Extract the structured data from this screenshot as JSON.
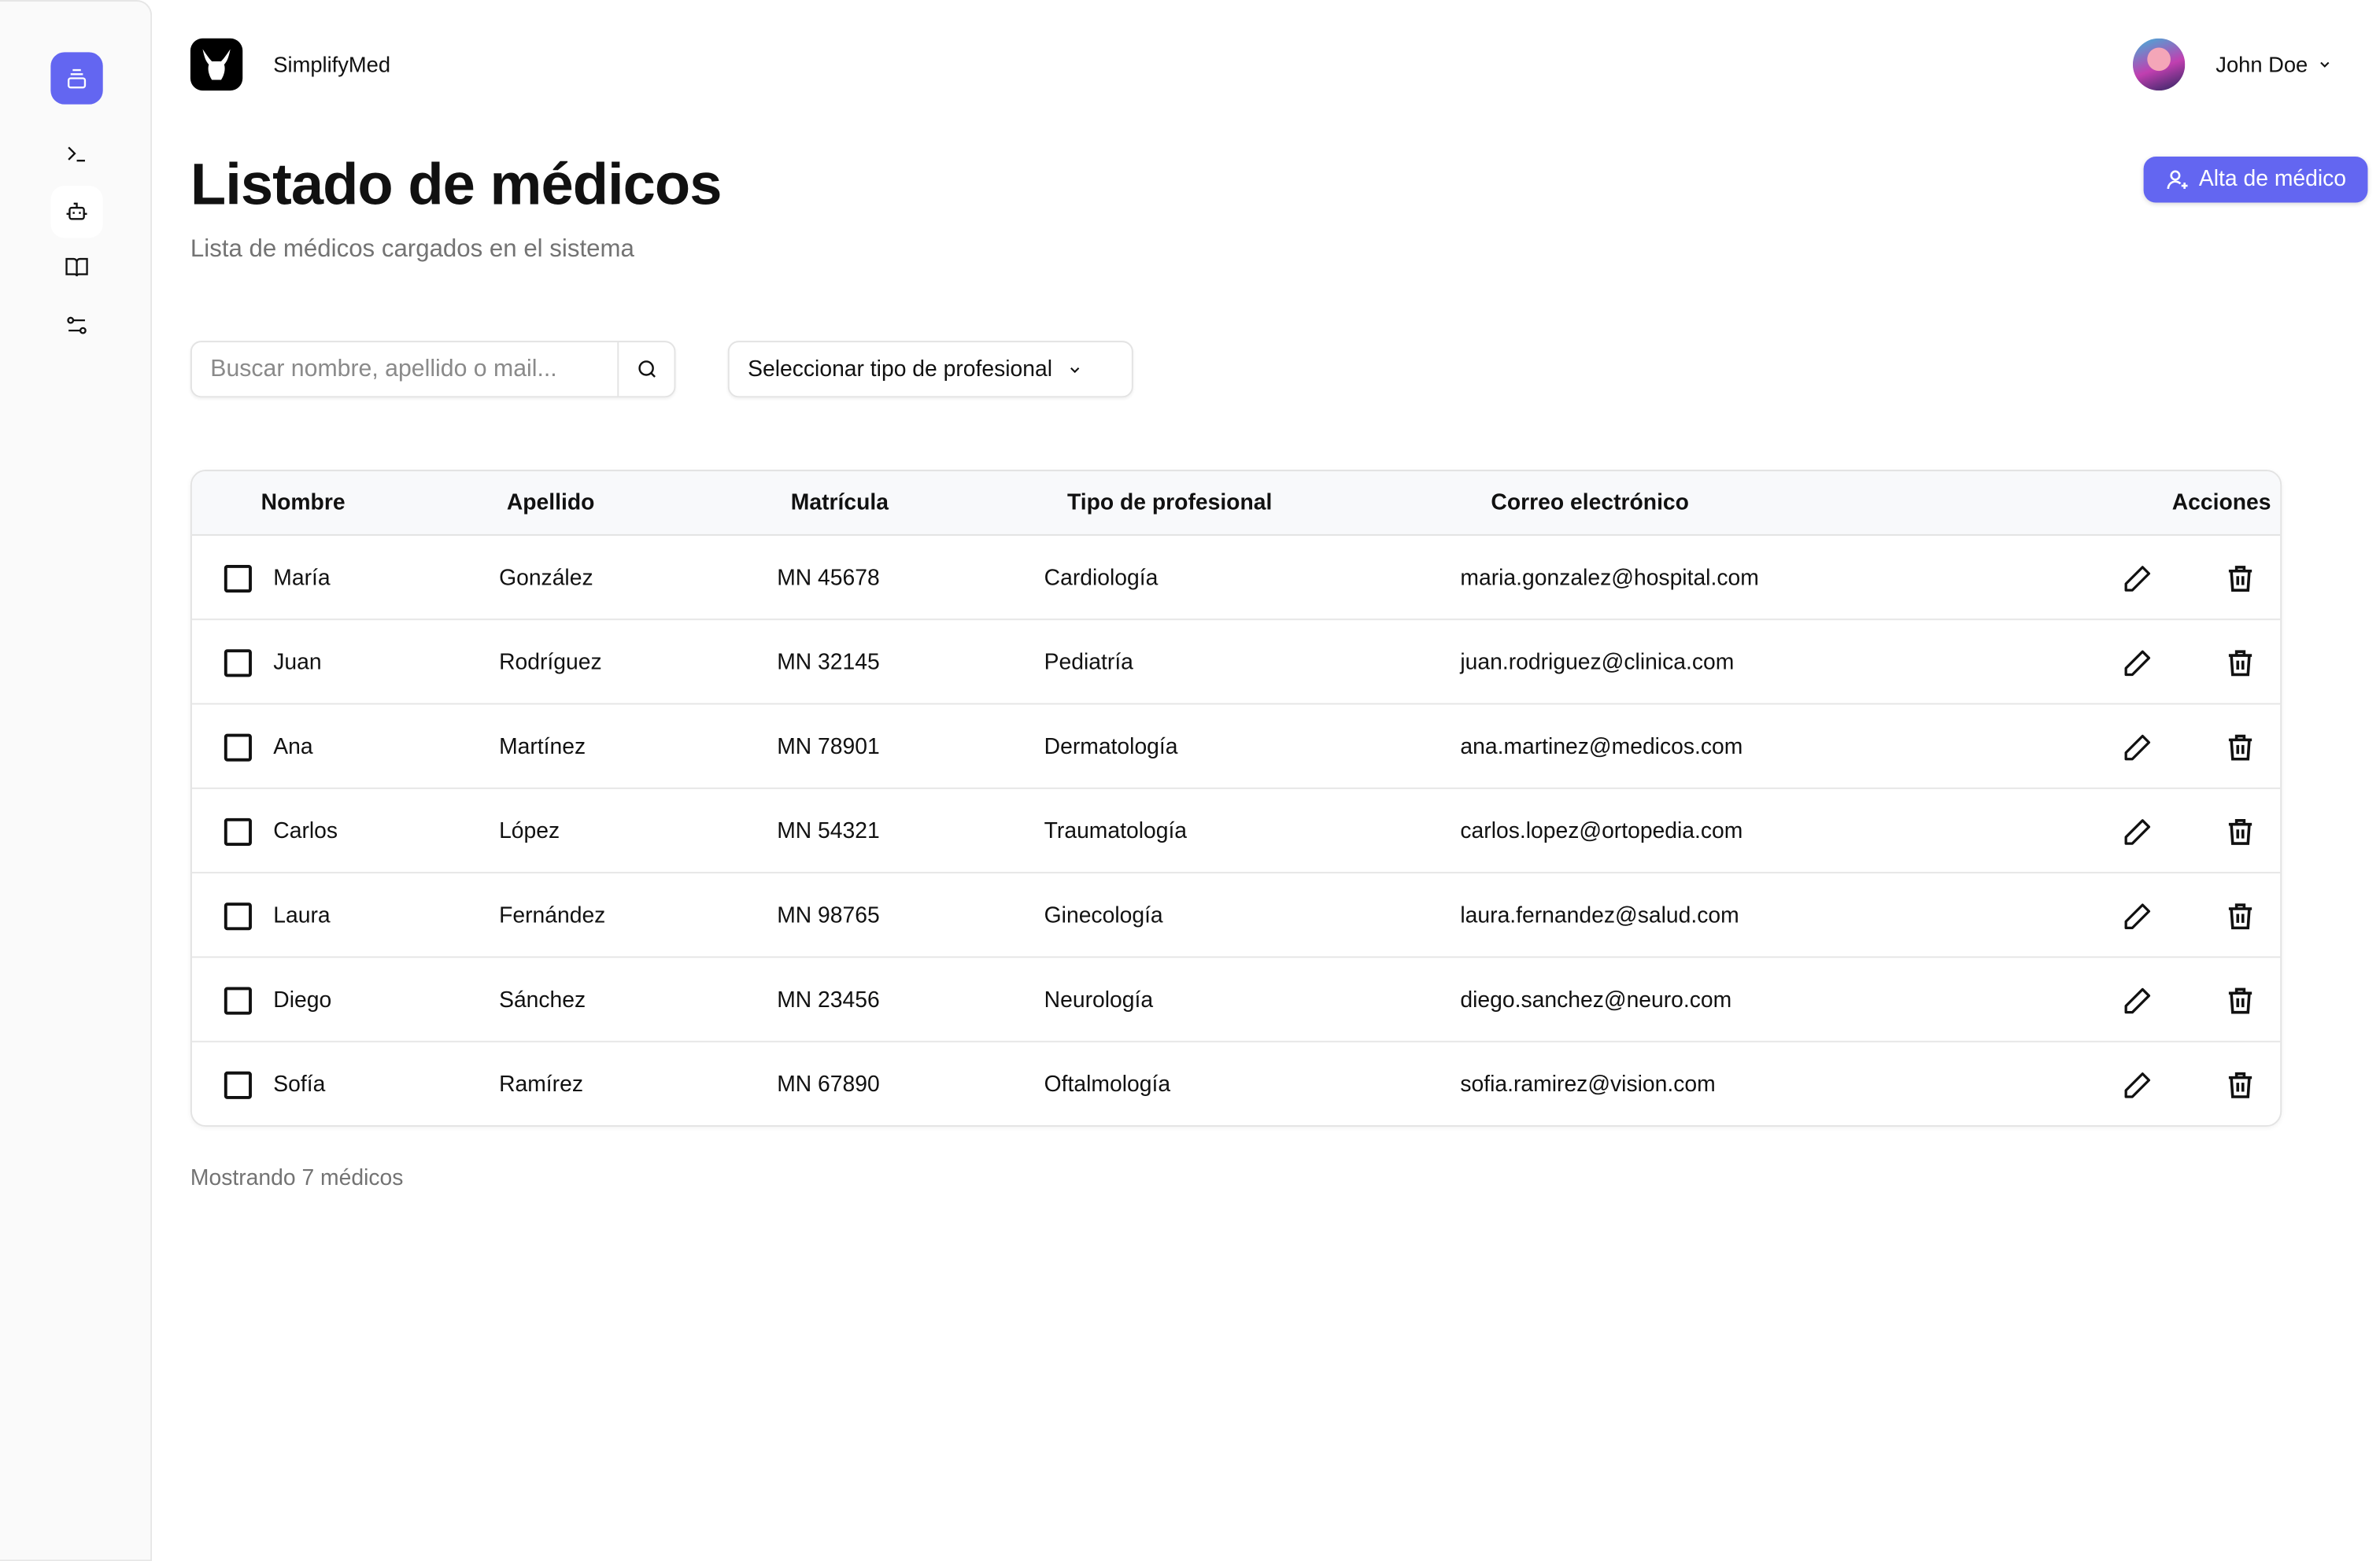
{
  "app": {
    "name": "SimplifyMed"
  },
  "user": {
    "name": "John Doe"
  },
  "sidebar": {
    "items": [
      {
        "icon": "archive-icon",
        "active": true
      },
      {
        "icon": "terminal-icon"
      },
      {
        "icon": "bot-icon"
      },
      {
        "icon": "book-icon"
      },
      {
        "icon": "sliders-icon"
      }
    ]
  },
  "page": {
    "title": "Listado de médicos",
    "subtitle": "Lista de médicos cargados en el sistema",
    "add_button": "Alta de médico"
  },
  "filters": {
    "search_placeholder": "Buscar nombre, apellido o mail...",
    "search_value": "",
    "type_select": "Seleccionar tipo de profesional"
  },
  "table": {
    "headers": [
      "Nombre",
      "Apellido",
      "Matrícula",
      "Tipo de profesional",
      "Correo electrónico",
      "Acciones"
    ],
    "rows": [
      {
        "nombre": "María",
        "apellido": "González",
        "matricula": "MN 45678",
        "tipo": "Cardiología",
        "correo": "maria.gonzalez@hospital.com"
      },
      {
        "nombre": "Juan",
        "apellido": "Rodríguez",
        "matricula": "MN 32145",
        "tipo": "Pediatría",
        "correo": "juan.rodriguez@clinica.com"
      },
      {
        "nombre": "Ana",
        "apellido": "Martínez",
        "matricula": "MN 78901",
        "tipo": "Dermatología",
        "correo": "ana.martinez@medicos.com"
      },
      {
        "nombre": "Carlos",
        "apellido": "López",
        "matricula": "MN 54321",
        "tipo": "Traumatología",
        "correo": "carlos.lopez@ortopedia.com"
      },
      {
        "nombre": "Laura",
        "apellido": "Fernández",
        "matricula": "MN 98765",
        "tipo": "Ginecología",
        "correo": "laura.fernandez@salud.com"
      },
      {
        "nombre": "Diego",
        "apellido": "Sánchez",
        "matricula": "MN 23456",
        "tipo": "Neurología",
        "correo": "diego.sanchez@neuro.com"
      },
      {
        "nombre": "Sofía",
        "apellido": "Ramírez",
        "matricula": "MN 67890",
        "tipo": "Oftalmología",
        "correo": "sofia.ramirez@vision.com"
      }
    ]
  },
  "footer": {
    "count_text": "Mostrando 7 médicos"
  },
  "colors": {
    "accent": "#6366f1",
    "sidebar_bg": "#fafafa",
    "header_bg": "#f8f9fb"
  }
}
